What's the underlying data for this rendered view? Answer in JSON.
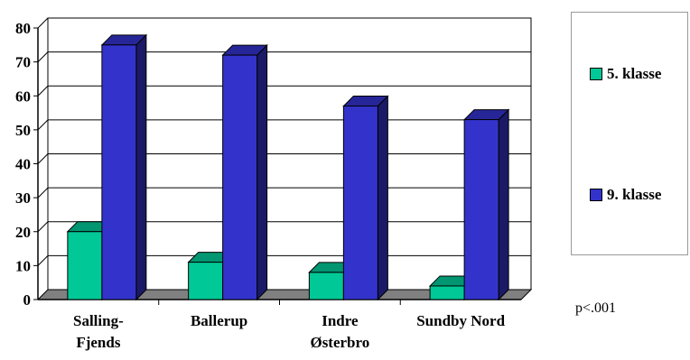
{
  "chart_data": {
    "type": "bar",
    "categories": [
      [
        "Salling-",
        "Fjends"
      ],
      [
        "Ballerup"
      ],
      [
        "Indre",
        "Østerbro"
      ],
      [
        "Sundby Nord"
      ]
    ],
    "series": [
      {
        "name": "5. klasse",
        "values": [
          20,
          11,
          8,
          4
        ],
        "color": "#00c896"
      },
      {
        "name": "9. klasse",
        "values": [
          75,
          72,
          57,
          53
        ],
        "color": "#3333cc"
      }
    ],
    "ylim": [
      0,
      80
    ],
    "yticks": [
      0,
      10,
      20,
      30,
      40,
      50,
      60,
      70,
      80
    ],
    "grid": true,
    "style": "3d-column",
    "legend_position": "right"
  },
  "note": "p<.001"
}
